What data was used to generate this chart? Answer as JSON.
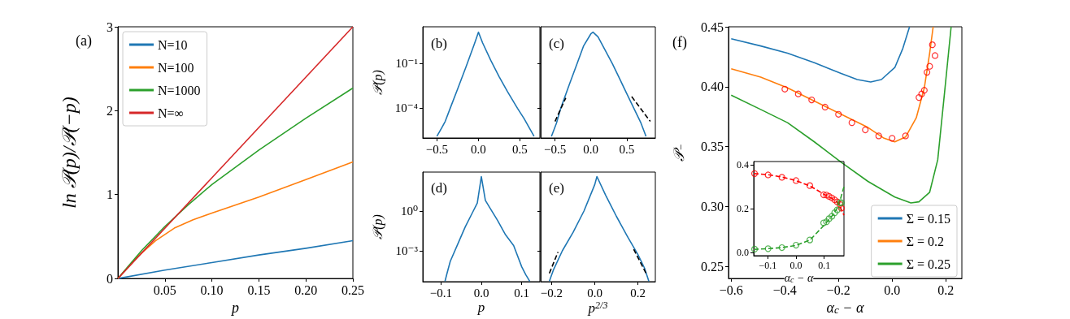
{
  "chart_data": [
    {
      "type": "line",
      "title": "(a)",
      "xlabel": "p",
      "ylabel": "ln 𝒫(p)/𝒫(−p)",
      "xlim": [
        0,
        0.25
      ],
      "ylim": [
        0,
        3
      ],
      "xticks": [
        {
          "value": 0.05,
          "label": "0.05"
        },
        {
          "value": 0.1,
          "label": "0.10"
        },
        {
          "value": 0.15,
          "label": "0.15"
        },
        {
          "value": 0.2,
          "label": "0.20"
        },
        {
          "value": 0.25,
          "label": "0.25"
        }
      ],
      "yticks": [
        0,
        1,
        2,
        3
      ],
      "legend": "top left",
      "marker": "none",
      "line_style": "solid",
      "series": [
        {
          "name": "N=10",
          "color": "#1f77b4",
          "x": [
            0,
            0.05,
            0.1,
            0.15,
            0.2,
            0.25
          ],
          "values": [
            0,
            0.1,
            0.19,
            0.28,
            0.36,
            0.45
          ]
        },
        {
          "name": "N=100",
          "color": "#ff7f0e",
          "x": [
            0,
            0.02,
            0.04,
            0.06,
            0.08,
            0.1,
            0.15,
            0.2,
            0.25
          ],
          "values": [
            0,
            0.25,
            0.45,
            0.6,
            0.7,
            0.78,
            0.97,
            1.18,
            1.39
          ]
        },
        {
          "name": "N=1000",
          "color": "#2ca02c",
          "x": [
            0,
            0.025,
            0.05,
            0.075,
            0.1,
            0.15,
            0.2,
            0.25
          ],
          "values": [
            0,
            0.33,
            0.62,
            0.88,
            1.12,
            1.53,
            1.91,
            2.27
          ]
        },
        {
          "name": "N=∞",
          "color": "#d62728",
          "x": [
            0,
            0.25
          ],
          "values": [
            0,
            3
          ]
        }
      ]
    },
    {
      "type": "line",
      "title": "(b)",
      "ylabel": "𝒫(p)",
      "log": "y",
      "xlim": [
        -0.67,
        0.74
      ],
      "ylim": [
        1e-06,
        30
      ],
      "xticks": [
        {
          "value": -0.5,
          "label": "−0.5"
        },
        {
          "value": 0,
          "label": "0.0"
        },
        {
          "value": 0.5,
          "label": "0.5"
        }
      ],
      "yticks": [
        {
          "value": 0.1,
          "label": "10⁻¹"
        },
        {
          "value": 0.0001,
          "label": "10⁻⁴"
        }
      ],
      "marker": "none",
      "line_style": "solid",
      "series": [
        {
          "color": "#1f77b4",
          "x": [
            -0.5,
            -0.44,
            -0.4,
            -0.34,
            -0.25,
            -0.15,
            -0.05,
            0,
            0.05,
            0.15,
            0.25,
            0.35,
            0.47,
            0.55,
            0.62,
            0.67
          ],
          "values": [
            1.3e-06,
            5e-06,
            1.3e-05,
            0.0001,
            0.002,
            0.06,
            2,
            13,
            2.5,
            0.16,
            0.013,
            0.0013,
            0.0001,
            2e-05,
            4e-06,
            1.3e-06
          ]
        }
      ]
    },
    {
      "type": "line",
      "title": "(c)",
      "log": "y",
      "xlim": [
        -0.7,
        0.9
      ],
      "ylim": [
        1e-06,
        30
      ],
      "tick_labels": "x",
      "xticks": [
        {
          "value": -0.5,
          "label": "−0.5"
        },
        {
          "value": 0,
          "label": "0.0"
        },
        {
          "value": 0.5,
          "label": "0.5"
        }
      ],
      "yticks": [
        {
          "value": 0.1,
          "label": null
        },
        {
          "value": 0.0001,
          "label": null
        }
      ],
      "marker": "none",
      "line_style": "solid",
      "series": [
        {
          "color": "#1f77b4",
          "x": [
            -0.55,
            -0.48,
            -0.42,
            -0.3,
            -0.2,
            -0.1,
            0,
            0.03,
            0.1,
            0.2,
            0.3,
            0.4,
            0.5,
            0.6,
            0.7,
            0.77
          ],
          "values": [
            1.3e-06,
            1e-05,
            0.0001,
            0.004,
            0.08,
            1.6,
            10,
            13,
            6.3,
            0.8,
            0.1,
            0.01,
            0.001,
            0.0001,
            1e-05,
            1.3e-06
          ]
        },
        {
          "color": "#000000",
          "line_style": "dashed",
          "x": [
            -0.5,
            -0.35
          ],
          "values": [
            1.3e-05,
            0.0005
          ]
        },
        {
          "color": "#000000",
          "line_style": "dashed",
          "x": [
            0.57,
            0.83
          ],
          "values": [
            0.0006,
            1.3e-05
          ]
        }
      ]
    },
    {
      "type": "line",
      "title": "(d)",
      "xlabel": "p",
      "ylabel": "𝒫(p)",
      "log": "y",
      "xlim": [
        -0.145,
        0.145
      ],
      "ylim": [
        4.7e-06,
        870
      ],
      "xticks": [
        {
          "value": -0.1,
          "label": "−0.1"
        },
        {
          "value": 0,
          "label": "0.0"
        },
        {
          "value": 0.1,
          "label": "0.1"
        }
      ],
      "yticks": [
        {
          "value": 1,
          "label": "10⁰"
        },
        {
          "value": 0.001,
          "label": "10⁻³"
        }
      ],
      "marker": "none",
      "line_style": "solid",
      "series": [
        {
          "color": "#1f77b4",
          "x": [
            -0.09,
            -0.085,
            -0.077,
            -0.057,
            -0.04,
            -0.02,
            -0.01,
            0,
            0.01,
            0.02,
            0.04,
            0.06,
            0.08,
            0.1,
            0.11,
            0.12
          ],
          "values": [
            5e-06,
            2e-05,
            0.00016,
            0.004,
            0.063,
            1,
            4,
            400,
            6.3,
            2,
            0.2,
            0.016,
            0.0025,
            6.3e-05,
            1.6e-05,
            5e-06
          ]
        }
      ]
    },
    {
      "type": "line",
      "title": "(e)",
      "xlabel": "p$^{2/3}$",
      "log": "y",
      "xlim": [
        -0.25,
        0.28
      ],
      "ylim": [
        4.7e-06,
        870
      ],
      "tick_labels": "x",
      "xticks": [
        {
          "value": -0.2,
          "label": "−0.2"
        },
        {
          "value": 0,
          "label": "0.0"
        },
        {
          "value": 0.2,
          "label": "0.2"
        }
      ],
      "yticks": [
        {
          "value": 1,
          "label": null
        },
        {
          "value": 0.001,
          "label": null
        }
      ],
      "marker": "none",
      "line_style": "solid",
      "series": [
        {
          "color": "#1f77b4",
          "x": [
            -0.21,
            -0.19,
            -0.15,
            -0.1,
            -0.05,
            0,
            0.01,
            0.05,
            0.1,
            0.15,
            0.2,
            0.23,
            0.25
          ],
          "values": [
            5e-06,
            4e-05,
            0.001,
            0.025,
            1,
            100,
            400,
            16,
            0.4,
            0.013,
            0.0005,
            5e-05,
            5e-06
          ]
        },
        {
          "color": "#000000",
          "line_style": "dashed",
          "x": [
            -0.21,
            -0.17
          ],
          "values": [
            2e-05,
            0.0008
          ]
        },
        {
          "color": "#000000",
          "line_style": "dashed",
          "x": [
            0.18,
            0.24
          ],
          "values": [
            0.0013,
            1.6e-05
          ]
        }
      ]
    },
    {
      "type": "line",
      "title": "(f)",
      "xlabel": "α$_{c}$ − α",
      "ylabel": "𝒫$_{−}$",
      "xlim": [
        -0.61,
        0.26
      ],
      "ylim": [
        0.24,
        0.45
      ],
      "xticks": [
        {
          "value": -0.6,
          "label": "−0.6"
        },
        {
          "value": -0.4,
          "label": "−0.4"
        },
        {
          "value": -0.2,
          "label": "−0.2"
        },
        {
          "value": 0,
          "label": "0.0"
        },
        {
          "value": 0.2,
          "label": "0.2"
        }
      ],
      "yticks": [
        {
          "value": 0.25,
          "label": "0.25"
        },
        {
          "value": 0.3,
          "label": "0.30"
        },
        {
          "value": 0.35,
          "label": "0.35"
        },
        {
          "value": 0.4,
          "label": "0.40"
        },
        {
          "value": 0.45,
          "label": "0.45"
        }
      ],
      "legend": "bottom right",
      "marker": "none",
      "line_style": "solid",
      "series": [
        {
          "name": "Σ = 0.15",
          "color": "#1f77b4",
          "x": [
            -0.6,
            -0.49,
            -0.39,
            -0.29,
            -0.19,
            -0.13,
            -0.08,
            -0.04,
            0.01,
            0.04,
            0.065
          ],
          "values": [
            0.44,
            0.434,
            0.428,
            0.42,
            0.411,
            0.406,
            0.404,
            0.406,
            0.416,
            0.432,
            0.45
          ]
        },
        {
          "name": "Σ = 0.2",
          "color": "#ff7f0e",
          "x": [
            -0.6,
            -0.49,
            -0.39,
            -0.29,
            -0.19,
            -0.09,
            -0.03,
            0.01,
            0.05,
            0.09,
            0.12,
            0.14,
            0.153
          ],
          "values": [
            0.415,
            0.408,
            0.399,
            0.388,
            0.377,
            0.366,
            0.357,
            0.354,
            0.358,
            0.374,
            0.399,
            0.428,
            0.45
          ]
        },
        {
          "name": "Σ = 0.25",
          "color": "#2ca02c",
          "x": [
            -0.6,
            -0.49,
            -0.39,
            -0.29,
            -0.19,
            -0.09,
            0.01,
            0.07,
            0.1,
            0.14,
            0.17,
            0.195,
            0.22
          ],
          "values": [
            0.393,
            0.381,
            0.37,
            0.354,
            0.337,
            0.321,
            0.308,
            0.303,
            0.304,
            0.312,
            0.339,
            0.394,
            0.45
          ]
        },
        {
          "type": "scatter",
          "marker": "circle",
          "color": "#ff0000",
          "x": [
            -0.4,
            -0.35,
            -0.3,
            -0.25,
            -0.2,
            -0.15,
            -0.1,
            -0.05,
            0,
            0.05,
            0.1,
            0.11,
            0.12,
            0.13,
            0.14,
            0.15,
            0.16
          ],
          "values": [
            0.398,
            0.394,
            0.389,
            0.383,
            0.377,
            0.37,
            0.364,
            0.359,
            0.357,
            0.359,
            0.391,
            0.394,
            0.397,
            0.412,
            0.417,
            0.435,
            0.426
          ]
        }
      ]
    },
    {
      "type": "line",
      "xlabel": "α$_{c}$ − α",
      "xlim": [
        -0.15,
        0.17
      ],
      "ylim": [
        -0.015,
        0.415
      ],
      "xticks": [
        {
          "value": -0.1,
          "label": "−0.1"
        },
        {
          "value": 0,
          "label": "0.0"
        },
        {
          "value": 0.1,
          "label": "0.1"
        }
      ],
      "yticks": [
        {
          "value": 0,
          "label": "0.0"
        },
        {
          "value": 0.2,
          "label": "0.2"
        },
        {
          "value": 0.4,
          "label": "0.4"
        }
      ],
      "marker": "none",
      "line_style": "dashed",
      "series": [
        {
          "color": "#ff0000",
          "x": [
            -0.15,
            -0.1,
            -0.05,
            0,
            0.05,
            0.1,
            0.13,
            0.15,
            0.17
          ],
          "values": [
            0.36,
            0.355,
            0.344,
            0.328,
            0.303,
            0.265,
            0.245,
            0.225,
            0.17
          ]
        },
        {
          "color": "#2ca02c",
          "x": [
            -0.15,
            -0.1,
            -0.05,
            0,
            0.05,
            0.1,
            0.13,
            0.15,
            0.17
          ],
          "values": [
            0.014,
            0.017,
            0.022,
            0.032,
            0.057,
            0.125,
            0.17,
            0.21,
            0.3
          ]
        },
        {
          "type": "scatter",
          "marker": "circle",
          "color": "#ff0000",
          "x": [
            -0.147,
            -0.099,
            -0.05,
            0,
            0.049,
            0.098,
            0.108,
            0.117,
            0.127,
            0.137,
            0.146,
            0.156,
            0.161
          ],
          "values": [
            0.36,
            0.354,
            0.343,
            0.328,
            0.305,
            0.263,
            0.262,
            0.256,
            0.249,
            0.24,
            0.231,
            0.219,
            0.202
          ]
        },
        {
          "type": "scatter",
          "marker": "circle",
          "color": "#2ca02c",
          "x": [
            -0.147,
            -0.099,
            -0.05,
            0,
            0.049,
            0.098,
            0.108,
            0.117,
            0.127,
            0.137,
            0.146,
            0.156,
            0.161
          ],
          "values": [
            0.015,
            0.017,
            0.022,
            0.033,
            0.057,
            0.135,
            0.14,
            0.154,
            0.165,
            0.181,
            0.194,
            0.227,
            0.227
          ]
        }
      ]
    }
  ]
}
